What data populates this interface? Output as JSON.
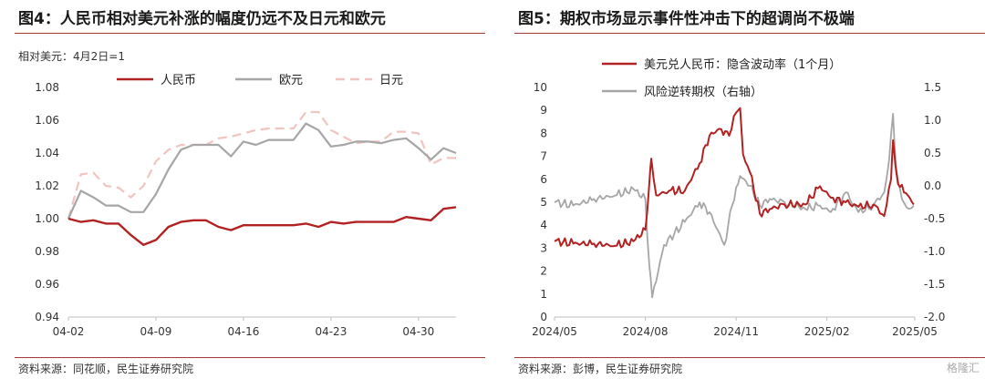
{
  "source_left": "资料来源：同花顺，民生证券研究院",
  "source_right": "资料来源：彭博，民生证券研究院",
  "logo_text": "格隆汇",
  "chart_data": [
    {
      "type": "line",
      "title": "图4：人民币相对美元补涨的幅度仍远不及日元和欧元",
      "note": "相对美元：4月2日=1",
      "x": [
        "04-02",
        "04-03",
        "04-04",
        "04-05",
        "04-06",
        "04-07",
        "04-08",
        "04-09",
        "04-10",
        "04-11",
        "04-12",
        "04-13",
        "04-14",
        "04-15",
        "04-16",
        "04-17",
        "04-18",
        "04-19",
        "04-20",
        "04-21",
        "04-22",
        "04-23",
        "04-24",
        "04-25",
        "04-26",
        "04-27",
        "04-28",
        "04-29",
        "04-30",
        "05-01",
        "05-02",
        "05-03"
      ],
      "xticks": [
        "04-02",
        "04-09",
        "04-16",
        "04-23",
        "04-30"
      ],
      "ylim": [
        0.94,
        1.08
      ],
      "yticks": [
        "0.94",
        "0.96",
        "0.98",
        "1.00",
        "1.02",
        "1.04",
        "1.06",
        "1.08"
      ],
      "series": [
        {
          "name": "人民币",
          "color": "#b22222",
          "dash": "solid",
          "values": [
            1.0,
            0.998,
            0.999,
            0.997,
            0.997,
            0.99,
            0.984,
            0.987,
            0.995,
            0.998,
            0.999,
            0.999,
            0.995,
            0.993,
            0.996,
            0.996,
            0.996,
            0.996,
            0.996,
            0.997,
            0.995,
            0.998,
            0.997,
            0.998,
            0.998,
            0.998,
            0.998,
            1.001,
            1.0,
            0.999,
            1.006,
            1.007
          ]
        },
        {
          "name": "欧元",
          "color": "#a6a6a6",
          "dash": "solid",
          "values": [
            1.0,
            1.017,
            1.013,
            1.008,
            1.008,
            1.004,
            1.004,
            1.015,
            1.03,
            1.042,
            1.045,
            1.045,
            1.045,
            1.038,
            1.047,
            1.045,
            1.048,
            1.048,
            1.048,
            1.058,
            1.054,
            1.044,
            1.045,
            1.047,
            1.047,
            1.046,
            1.048,
            1.049,
            1.043,
            1.036,
            1.043,
            1.04
          ]
        },
        {
          "name": "日元",
          "color": "#f0c4c0",
          "dash": "dashed",
          "values": [
            1.0,
            1.027,
            1.028,
            1.02,
            1.019,
            1.013,
            1.02,
            1.035,
            1.042,
            1.045,
            1.045,
            1.045,
            1.049,
            1.05,
            1.052,
            1.054,
            1.055,
            1.055,
            1.055,
            1.065,
            1.065,
            1.054,
            1.05,
            1.046,
            1.047,
            1.047,
            1.053,
            1.053,
            1.052,
            1.033,
            1.037,
            1.037
          ]
        }
      ]
    },
    {
      "type": "line",
      "title": "图5：期权市场显示事件性冲击下的超调尚不极端",
      "xticks": [
        "2024/05",
        "2024/08",
        "2024/11",
        "2025/02",
        "2025/05"
      ],
      "x_range": [
        "2024/05",
        "2025/05"
      ],
      "ylim": [
        0,
        10
      ],
      "yticks": [
        "0",
        "1",
        "2",
        "3",
        "4",
        "5",
        "6",
        "7",
        "8",
        "9",
        "10"
      ],
      "y2lim": [
        -2.0,
        1.5
      ],
      "y2ticks": [
        "-2.0",
        "-1.5",
        "-1.0",
        "-0.5",
        "0.0",
        "0.5",
        "1.0",
        "1.5"
      ],
      "series": [
        {
          "name": "美元兑人民币：隐含波动率（1个月）",
          "axis": "left",
          "color": "#b22222",
          "x": [
            "2024/05/01",
            "2024/05/20",
            "2024/06/10",
            "2024/07/01",
            "2024/07/20",
            "2024/08/01",
            "2024/08/05",
            "2024/08/07",
            "2024/08/12",
            "2024/08/25",
            "2024/09/10",
            "2024/09/25",
            "2024/10/05",
            "2024/10/15",
            "2024/10/25",
            "2024/11/01",
            "2024/11/05",
            "2024/11/08",
            "2024/11/15",
            "2024/11/25",
            "2024/12/05",
            "2024/12/20",
            "2025/01/10",
            "2025/01/25",
            "2025/02/05",
            "2025/02/20",
            "2025/03/05",
            "2025/03/20",
            "2025/03/31",
            "2025/04/07",
            "2025/04/09",
            "2025/04/14",
            "2025/04/22",
            "2025/04/30"
          ],
          "values": [
            3.3,
            3.2,
            3.2,
            3.1,
            3.3,
            3.8,
            5.8,
            6.9,
            5.3,
            5.5,
            5.5,
            6.7,
            7.9,
            8.2,
            7.9,
            8.9,
            9.1,
            7.1,
            6.3,
            4.5,
            4.7,
            4.9,
            4.9,
            5.7,
            5.2,
            5.0,
            4.8,
            4.9,
            4.4,
            6.0,
            7.7,
            5.8,
            5.4,
            4.9
          ]
        },
        {
          "name": "风险逆转期权（右轴）",
          "axis": "right",
          "color": "#a6a6a6",
          "x": [
            "2024/05/01",
            "2024/05/20",
            "2024/06/10",
            "2024/07/01",
            "2024/07/20",
            "2024/08/01",
            "2024/08/05",
            "2024/08/08",
            "2024/08/20",
            "2024/09/10",
            "2024/09/25",
            "2024/10/05",
            "2024/10/20",
            "2024/10/28",
            "2024/11/05",
            "2024/11/15",
            "2024/11/25",
            "2024/12/05",
            "2024/12/20",
            "2025/01/10",
            "2025/01/25",
            "2025/02/05",
            "2025/02/20",
            "2025/03/05",
            "2025/03/20",
            "2025/03/31",
            "2025/04/05",
            "2025/04/09",
            "2025/04/12",
            "2025/04/18",
            "2025/04/25",
            "2025/04/30"
          ],
          "values": [
            -0.25,
            -0.3,
            -0.2,
            -0.15,
            -0.05,
            -0.2,
            -1.2,
            -1.7,
            -0.9,
            -0.55,
            -0.25,
            -0.4,
            -0.9,
            -0.3,
            0.15,
            0.0,
            -0.3,
            -0.2,
            -0.25,
            -0.35,
            -0.3,
            -0.4,
            -0.1,
            -0.4,
            -0.3,
            -0.1,
            0.4,
            1.1,
            0.3,
            -0.2,
            -0.35,
            -0.3
          ]
        }
      ]
    }
  ]
}
